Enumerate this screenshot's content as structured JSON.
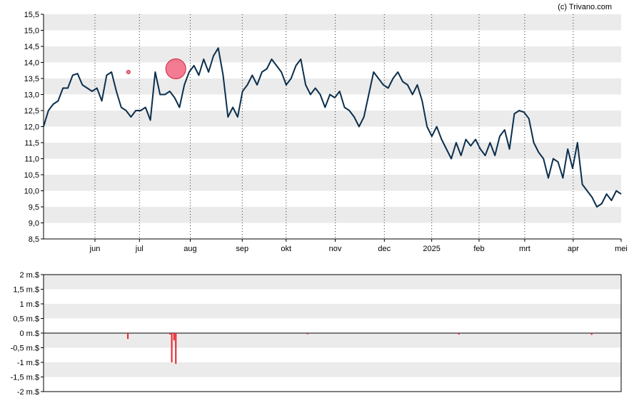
{
  "copyright": "(c) Trivano.com",
  "colors": {
    "line": "#0b2f4d",
    "band": "#ebebeb",
    "axis": "#000000",
    "volume_bar": "#e8202a",
    "marker_fill": "#f0506e",
    "marker_stroke": "#c8283c"
  },
  "chart_data": [
    {
      "type": "line",
      "title": "",
      "xlabel": "",
      "ylabel": "",
      "ylim": [
        8.5,
        15.5
      ],
      "y_ticks": [
        "15,5",
        "15,0",
        "14,5",
        "14,0",
        "13,5",
        "13,0",
        "12,5",
        "12,0",
        "11,5",
        "11,0",
        "10,5",
        "10,0",
        "9,5",
        "9,0",
        "8,5"
      ],
      "x_ticks": [
        "jun",
        "jul",
        "aug",
        "sep",
        "okt",
        "nov",
        "dec",
        "2025",
        "feb",
        "mrt",
        "apr",
        "mei"
      ],
      "x_tick_pos": [
        0.089,
        0.166,
        0.254,
        0.344,
        0.42,
        0.505,
        0.59,
        0.672,
        0.754,
        0.833,
        0.917,
        1.0
      ],
      "grid": "vertical dotted lines at month ticks, alternating horizontal bands",
      "series": [
        {
          "values": [
            12.0,
            12.5,
            12.7,
            12.8,
            13.2,
            13.2,
            13.6,
            13.65,
            13.3,
            13.2,
            13.1,
            13.2,
            12.8,
            13.6,
            13.7,
            13.1,
            12.6,
            12.5,
            12.3,
            12.5,
            12.5,
            12.6,
            12.2,
            13.7,
            13.0,
            13.0,
            13.1,
            12.9,
            12.6,
            13.3,
            13.7,
            13.9,
            13.6,
            14.1,
            13.7,
            14.2,
            14.45,
            13.6,
            12.3,
            12.6,
            12.3,
            13.1,
            13.3,
            13.6,
            13.3,
            13.7,
            13.8,
            14.1,
            13.9,
            13.7,
            13.3,
            13.5,
            13.9,
            14.1,
            13.3,
            13.0,
            13.2,
            13.0,
            12.6,
            13.0,
            12.9,
            13.1,
            12.6,
            12.5,
            12.3,
            12.0,
            12.3,
            13.0,
            13.7,
            13.5,
            13.3,
            13.2,
            13.5,
            13.7,
            13.4,
            13.3,
            13.0,
            13.3,
            12.8,
            12.0,
            11.7,
            12.0,
            11.6,
            11.3,
            11.0,
            11.5,
            11.1,
            11.6,
            11.4,
            11.6,
            11.3,
            11.1,
            11.5,
            11.1,
            11.7,
            11.9,
            11.3,
            12.4,
            12.5,
            12.45,
            12.25,
            11.5,
            11.2,
            11.0,
            10.4,
            11.0,
            10.9,
            10.4,
            11.3,
            10.7,
            11.5,
            10.2,
            10.0,
            9.8,
            9.5,
            9.6,
            9.9,
            9.7,
            10.0,
            9.9
          ]
        }
      ],
      "markers": [
        {
          "label": "small",
          "x": 0.147,
          "y": 13.7
        },
        {
          "label": "large",
          "x": 0.229,
          "y": 13.8
        }
      ]
    },
    {
      "type": "bar",
      "title": "",
      "xlabel": "",
      "ylabel": "",
      "ylim": [
        -2,
        2
      ],
      "y_ticks": [
        "2 m.$",
        "1,5 m.$",
        "1 m.$",
        "0,5 m.$",
        "0 m.$",
        "-0,5 m.$",
        "-1 m.$",
        "-1,5 m.$",
        "-2 m.$"
      ],
      "bars": [
        {
          "x": 0.146,
          "value": -0.2
        },
        {
          "x": 0.219,
          "value": -0.05
        },
        {
          "x": 0.222,
          "value": -1.0
        },
        {
          "x": 0.226,
          "value": -0.25
        },
        {
          "x": 0.229,
          "value": -1.05
        },
        {
          "x": 0.457,
          "value": -0.04
        },
        {
          "x": 0.719,
          "value": -0.05
        },
        {
          "x": 0.949,
          "value": -0.06
        }
      ]
    }
  ]
}
